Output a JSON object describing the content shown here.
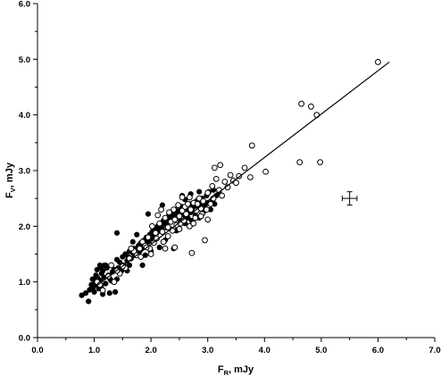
{
  "chart_data": {
    "type": "scatter",
    "title": "",
    "xlabel": {
      "main": "F",
      "sub": "R",
      "unit": ", mJy"
    },
    "ylabel": {
      "main": "F",
      "sub": "V",
      "unit": ", mJy"
    },
    "xlim": [
      0.0,
      7.0
    ],
    "ylim": [
      0.0,
      6.0
    ],
    "xticks": [
      "0.0",
      "1.0",
      "2.0",
      "3.0",
      "4.0",
      "5.0",
      "6.0",
      "7.0"
    ],
    "yticks": [
      "0.0",
      "1.0",
      "2.0",
      "3.0",
      "4.0",
      "5.0",
      "6.0"
    ],
    "grid": false,
    "legend": "none",
    "series": [
      {
        "marker": "filled-circle",
        "color": "#000000",
        "points": [
          [
            0.78,
            0.76
          ],
          [
            0.85,
            0.8
          ],
          [
            0.9,
            0.65
          ],
          [
            0.92,
            0.86
          ],
          [
            0.95,
            0.95
          ],
          [
            0.97,
            1.05
          ],
          [
            0.98,
            0.9
          ],
          [
            1.0,
            0.82
          ],
          [
            1.02,
            1.0
          ],
          [
            1.03,
            1.12
          ],
          [
            1.05,
            1.22
          ],
          [
            1.05,
            0.95
          ],
          [
            1.07,
            1.05
          ],
          [
            1.08,
            0.88
          ],
          [
            1.1,
            1.3
          ],
          [
            1.1,
            1.02
          ],
          [
            1.12,
            0.92
          ],
          [
            1.13,
            1.15
          ],
          [
            1.15,
            1.2
          ],
          [
            1.15,
            0.78
          ],
          [
            1.17,
            1.08
          ],
          [
            1.18,
            1.3
          ],
          [
            1.2,
            0.97
          ],
          [
            1.22,
            1.25
          ],
          [
            1.25,
            1.12
          ],
          [
            1.27,
            0.8
          ],
          [
            1.28,
            1.05
          ],
          [
            1.3,
            1.3
          ],
          [
            1.32,
            1.18
          ],
          [
            1.35,
            1.22
          ],
          [
            1.37,
            0.82
          ],
          [
            1.4,
            1.4
          ],
          [
            1.4,
            1.05
          ],
          [
            1.42,
            1.25
          ],
          [
            1.45,
            1.35
          ],
          [
            1.48,
            1.2
          ],
          [
            1.5,
            1.45
          ],
          [
            1.52,
            1.3
          ],
          [
            1.55,
            1.5
          ],
          [
            1.58,
            1.38
          ],
          [
            1.6,
            1.45
          ],
          [
            1.62,
            1.55
          ],
          [
            1.65,
            1.42
          ],
          [
            1.68,
            1.52
          ],
          [
            1.7,
            1.6
          ],
          [
            1.72,
            1.48
          ],
          [
            1.75,
            1.58
          ],
          [
            1.78,
            1.65
          ],
          [
            1.8,
            1.55
          ],
          [
            1.82,
            1.7
          ],
          [
            1.85,
            1.62
          ],
          [
            1.88,
            1.75
          ],
          [
            1.9,
            1.68
          ],
          [
            1.92,
            1.8
          ],
          [
            1.95,
            1.72
          ],
          [
            1.98,
            1.85
          ],
          [
            2.0,
            1.78
          ],
          [
            2.02,
            1.9
          ],
          [
            2.05,
            1.82
          ],
          [
            2.08,
            1.95
          ],
          [
            2.1,
            1.88
          ],
          [
            2.12,
            2.0
          ],
          [
            2.15,
            1.92
          ],
          [
            2.18,
            2.05
          ],
          [
            2.2,
            1.98
          ],
          [
            2.22,
            2.1
          ],
          [
            2.25,
            2.02
          ],
          [
            2.28,
            2.15
          ],
          [
            2.3,
            2.08
          ],
          [
            2.32,
            2.2
          ],
          [
            2.35,
            2.12
          ],
          [
            2.38,
            2.25
          ],
          [
            2.4,
            2.18
          ],
          [
            2.42,
            2.3
          ],
          [
            2.45,
            2.22
          ],
          [
            2.48,
            2.0
          ],
          [
            2.5,
            2.28
          ],
          [
            2.52,
            2.1
          ],
          [
            2.55,
            2.35
          ],
          [
            2.58,
            2.2
          ],
          [
            2.6,
            2.05
          ],
          [
            2.62,
            2.3
          ],
          [
            2.65,
            2.15
          ],
          [
            2.68,
            2.4
          ],
          [
            2.7,
            2.25
          ],
          [
            2.72,
            2.1
          ],
          [
            2.75,
            2.35
          ],
          [
            2.78,
            2.2
          ],
          [
            2.8,
            2.45
          ],
          [
            2.82,
            2.3
          ],
          [
            2.85,
            2.15
          ],
          [
            2.88,
            2.4
          ],
          [
            2.9,
            2.5
          ],
          [
            2.92,
            2.25
          ],
          [
            2.95,
            2.35
          ],
          [
            2.98,
            2.55
          ],
          [
            3.0,
            2.42
          ],
          [
            3.02,
            2.62
          ],
          [
            3.05,
            2.3
          ],
          [
            3.08,
            2.48
          ],
          [
            3.1,
            2.65
          ],
          [
            3.12,
            2.4
          ],
          [
            3.15,
            2.55
          ],
          [
            3.2,
            2.6
          ],
          [
            1.4,
            1.88
          ],
          [
            1.2,
            1.3
          ],
          [
            2.95,
            2.4
          ],
          [
            2.45,
            1.92
          ],
          [
            2.0,
            1.55
          ],
          [
            1.85,
            1.3
          ],
          [
            2.15,
            1.62
          ],
          [
            1.75,
            1.85
          ],
          [
            2.35,
            1.95
          ],
          [
            2.55,
            2.55
          ],
          [
            2.2,
            2.38
          ],
          [
            1.95,
            2.22
          ],
          [
            2.7,
            2.58
          ],
          [
            2.05,
            1.7
          ],
          [
            2.25,
            1.75
          ],
          [
            1.58,
            1.2
          ],
          [
            1.68,
            1.72
          ],
          [
            2.4,
            1.6
          ],
          [
            1.3,
            1.02
          ],
          [
            1.12,
            1.26
          ],
          [
            1.05,
            1.08
          ],
          [
            1.62,
            1.3
          ],
          [
            1.9,
            1.48
          ],
          [
            2.6,
            2.48
          ],
          [
            2.85,
            2.62
          ]
        ]
      },
      {
        "marker": "open-circle",
        "color": "#000000",
        "points": [
          [
            1.05,
            1.0
          ],
          [
            1.15,
            0.85
          ],
          [
            1.25,
            1.1
          ],
          [
            1.35,
            1.0
          ],
          [
            1.45,
            1.15
          ],
          [
            1.55,
            1.25
          ],
          [
            1.62,
            1.42
          ],
          [
            1.7,
            1.55
          ],
          [
            1.75,
            1.48
          ],
          [
            1.8,
            1.6
          ],
          [
            1.85,
            1.72
          ],
          [
            1.9,
            1.65
          ],
          [
            1.95,
            1.8
          ],
          [
            2.0,
            1.5
          ],
          [
            2.05,
            1.7
          ],
          [
            2.08,
            1.88
          ],
          [
            2.1,
            1.78
          ],
          [
            2.15,
            2.05
          ],
          [
            2.2,
            1.9
          ],
          [
            2.22,
            1.72
          ],
          [
            2.25,
            2.15
          ],
          [
            2.28,
            1.98
          ],
          [
            2.3,
            1.82
          ],
          [
            2.32,
            2.25
          ],
          [
            2.35,
            2.08
          ],
          [
            2.38,
            1.92
          ],
          [
            2.4,
            2.3
          ],
          [
            2.42,
            2.12
          ],
          [
            2.45,
            2.02
          ],
          [
            2.48,
            2.38
          ],
          [
            2.5,
            2.18
          ],
          [
            2.52,
            2.05
          ],
          [
            2.55,
            2.28
          ],
          [
            2.58,
            2.1
          ],
          [
            2.6,
            2.35
          ],
          [
            2.62,
            2.22
          ],
          [
            2.65,
            2.4
          ],
          [
            2.68,
            2.0
          ],
          [
            2.7,
            2.3
          ],
          [
            2.72,
            1.52
          ],
          [
            2.75,
            2.42
          ],
          [
            2.78,
            2.15
          ],
          [
            2.8,
            2.28
          ],
          [
            2.82,
            2.4
          ],
          [
            2.85,
            2.5
          ],
          [
            2.88,
            2.32
          ],
          [
            2.9,
            2.22
          ],
          [
            2.92,
            2.45
          ],
          [
            2.95,
            1.75
          ],
          [
            2.98,
            2.3
          ],
          [
            3.0,
            2.6
          ],
          [
            3.05,
            2.4
          ],
          [
            3.08,
            2.72
          ],
          [
            3.1,
            2.5
          ],
          [
            3.12,
            3.05
          ],
          [
            3.15,
            2.85
          ],
          [
            3.2,
            2.65
          ],
          [
            3.22,
            3.1
          ],
          [
            3.25,
            2.55
          ],
          [
            3.3,
            2.8
          ],
          [
            3.35,
            2.7
          ],
          [
            3.4,
            2.92
          ],
          [
            3.45,
            2.82
          ],
          [
            3.5,
            2.78
          ],
          [
            3.55,
            2.9
          ],
          [
            3.65,
            3.05
          ],
          [
            3.75,
            2.88
          ],
          [
            3.78,
            3.45
          ],
          [
            4.02,
            2.98
          ],
          [
            4.62,
            3.15
          ],
          [
            4.65,
            4.2
          ],
          [
            4.82,
            4.15
          ],
          [
            4.92,
            4.0
          ],
          [
            4.98,
            3.15
          ],
          [
            6.0,
            4.95
          ],
          [
            1.3,
            1.3
          ],
          [
            1.5,
            1.28
          ],
          [
            1.65,
            1.6
          ],
          [
            1.82,
            1.45
          ],
          [
            2.12,
            2.2
          ],
          [
            2.18,
            2.3
          ],
          [
            2.42,
            1.62
          ],
          [
            2.55,
            2.52
          ],
          [
            2.68,
            2.52
          ],
          [
            2.02,
            2.0
          ],
          [
            1.98,
            1.6
          ],
          [
            1.1,
            0.95
          ],
          [
            1.4,
            1.2
          ],
          [
            2.3,
            1.98
          ],
          [
            2.5,
            1.95
          ],
          [
            2.75,
            2.05
          ],
          [
            2.88,
            2.18
          ],
          [
            3.0,
            2.12
          ],
          [
            1.92,
            1.62
          ],
          [
            2.25,
            1.6
          ]
        ]
      }
    ],
    "fit_line": {
      "x": [
        0.85,
        6.2
      ],
      "y": [
        0.78,
        4.95
      ]
    },
    "error_bar": {
      "x": 5.5,
      "y": 2.5,
      "xerr": 0.13,
      "yerr": 0.12
    }
  }
}
